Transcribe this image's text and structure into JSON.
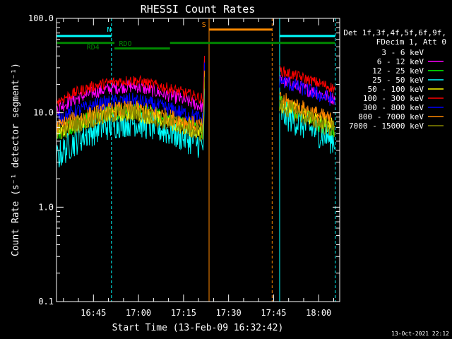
{
  "chart_data": {
    "type": "line",
    "title": "RHESSI Count Rates",
    "xlabel": "Start Time (13-Feb-09 16:32:42)",
    "ylabel": "Count Rate (s⁻¹ detector segment⁻¹)",
    "yscale": "log",
    "ylim": [
      0.1,
      100.0
    ],
    "xlim_minutes_after_1630": [
      2.7,
      97.0
    ],
    "y_tick_labels": [
      "100.0",
      "10.0",
      "1.0",
      "0.1"
    ],
    "y_tick_values": [
      100,
      10,
      1,
      0.1
    ],
    "x_tick_labels": [
      "16:45",
      "17:00",
      "17:15",
      "17:30",
      "17:45",
      "18:00"
    ],
    "x_tick_values": [
      15,
      30,
      45,
      60,
      75,
      90
    ],
    "legend_header": [
      "Det 1f,3f,4f,5f,6f,9f,",
      "FDecim 1, Att 0"
    ],
    "legend_position": "right",
    "series": [
      {
        "name": "3 - 6 keV",
        "color": "#000000",
        "seg1": [
          6.0,
          10.0,
          6.0
        ],
        "seg2": [
          12.0,
          7.0
        ]
      },
      {
        "name": "6 - 12 keV",
        "color": "#ff00ff",
        "seg1": [
          11.0,
          19.0,
          11.5
        ],
        "seg2": [
          22.0,
          14.0
        ]
      },
      {
        "name": "12 - 25 keV",
        "color": "#00ff00",
        "seg1": [
          6.0,
          10.5,
          6.5
        ],
        "seg2": [
          13.0,
          6.0
        ]
      },
      {
        "name": "25 - 50 keV",
        "color": "#00ffff",
        "seg1": [
          3.3,
          8.0,
          4.5
        ],
        "seg2": [
          10.0,
          5.0
        ]
      },
      {
        "name": "50 - 100 keV",
        "color": "#ffff00",
        "seg1": [
          6.2,
          10.0,
          6.0
        ],
        "seg2": [
          12.5,
          7.0
        ]
      },
      {
        "name": "100 - 300 keV",
        "color": "#ff0000",
        "seg1": [
          13.0,
          22.0,
          14.0
        ],
        "seg2": [
          28.0,
          18.0
        ]
      },
      {
        "name": "300 - 800 keV",
        "color": "#0000ff",
        "seg1": [
          8.5,
          13.5,
          8.5
        ],
        "seg2": [
          22.0,
          13.5
        ]
      },
      {
        "name": "800 - 7000 keV",
        "color": "#ff8800",
        "seg1": [
          7.0,
          11.0,
          7.0
        ],
        "seg2": [
          14.0,
          8.0
        ]
      },
      {
        "name": "7000 - 15000 keV",
        "color": "#888800",
        "seg1": [
          6.0,
          10.0,
          6.0
        ],
        "seg2": [
          12.0,
          6.5
        ]
      }
    ],
    "segment_times": {
      "seg1": [
        2.7,
        29.0,
        51.5
      ],
      "seg2": [
        77.0,
        95.5
      ]
    },
    "flare_spike": {
      "time": 52.0,
      "value": 40.0
    },
    "intervals": [
      {
        "label": "N",
        "color": "#00ffff",
        "start": 2.7,
        "end": 21.0,
        "level": 65.0
      },
      {
        "label": "",
        "color": "#00ffff",
        "start": 77.0,
        "end": 95.5,
        "level": 65.0
      },
      {
        "label": "RDO",
        "color": "#008800",
        "start": 22.0,
        "end": 40.5,
        "level": 48.0
      },
      {
        "label": "RD4",
        "color": "#008800",
        "start": 2.7,
        "end": 22.0,
        "level": 55.0
      },
      {
        "label": "",
        "color": "#008800",
        "start": 40.5,
        "end": 95.5,
        "level": 55.0
      },
      {
        "label": "S",
        "color": "#ff8800",
        "start": 53.5,
        "end": 74.5,
        "level": 76.0
      }
    ],
    "vertical_lines": [
      {
        "time": 2.7,
        "color": "#00ffff",
        "style": "solid"
      },
      {
        "time": 21.0,
        "color": "#00ffff",
        "style": "dashed"
      },
      {
        "time": 53.5,
        "color": "#ff8800",
        "style": "solid"
      },
      {
        "time": 74.5,
        "color": "#ff8800",
        "style": "dashed"
      },
      {
        "time": 77.0,
        "color": "#00ffff",
        "style": "solid"
      },
      {
        "time": 95.5,
        "color": "#00ffff",
        "style": "dashed"
      }
    ],
    "footer_timestamp": "13-Oct-2021 22:12"
  }
}
